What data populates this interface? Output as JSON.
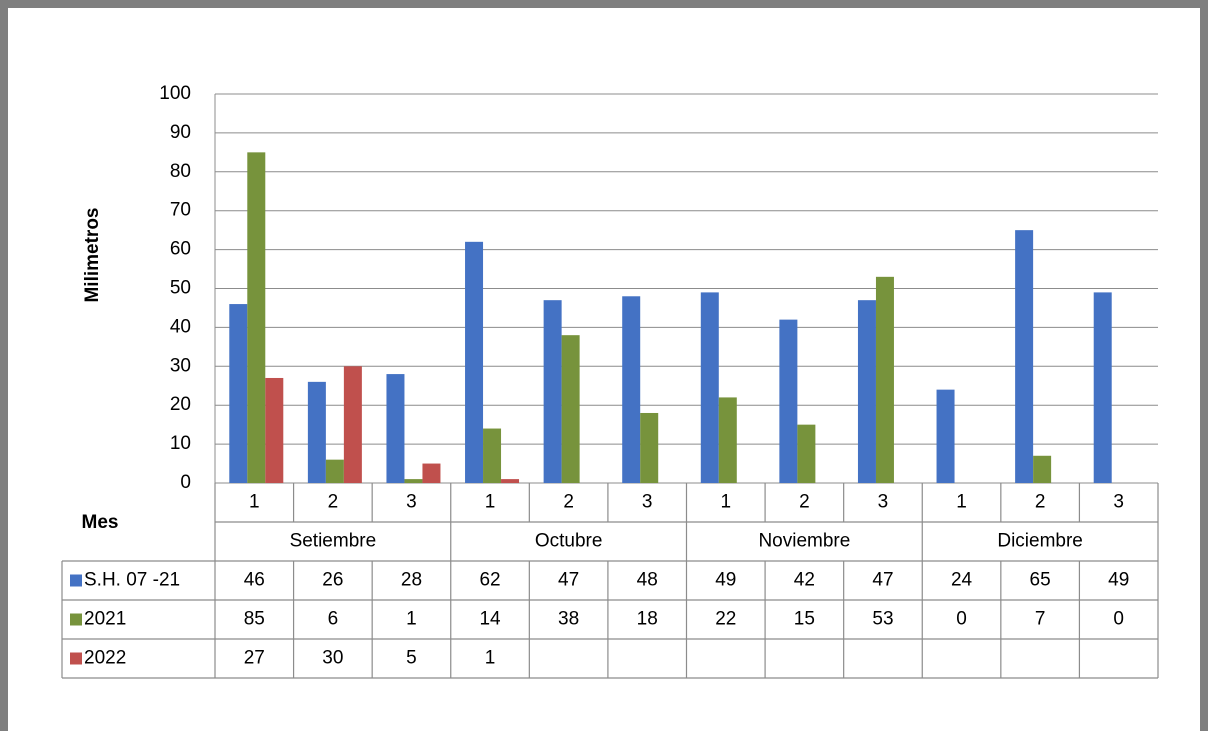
{
  "chart_data": {
    "type": "bar",
    "y_label": "Milimetros",
    "x_label": "Mes",
    "categories": [
      "1",
      "2",
      "3",
      "1",
      "2",
      "3",
      "1",
      "2",
      "3",
      "1",
      "2",
      "3"
    ],
    "groups": [
      "Setiembre",
      "Octubre",
      "Noviembre",
      "Diciembre"
    ],
    "series": [
      {
        "name": "S.H. 07 -21",
        "color": "#4472c4",
        "values": [
          46,
          26,
          28,
          62,
          47,
          48,
          49,
          42,
          47,
          24,
          65,
          49
        ]
      },
      {
        "name": "2021",
        "color": "#77933c",
        "values": [
          85,
          6,
          1,
          14,
          38,
          18,
          22,
          15,
          53,
          0,
          7,
          0
        ]
      },
      {
        "name": "2022",
        "color": "#c0504d",
        "values": [
          27,
          30,
          5,
          1,
          null,
          null,
          null,
          null,
          null,
          null,
          null,
          null
        ]
      }
    ],
    "ylim": [
      0,
      100
    ],
    "yticks": [
      0,
      10,
      20,
      30,
      40,
      50,
      60,
      70,
      80,
      90,
      100
    ],
    "grid": true,
    "data_table": true
  }
}
